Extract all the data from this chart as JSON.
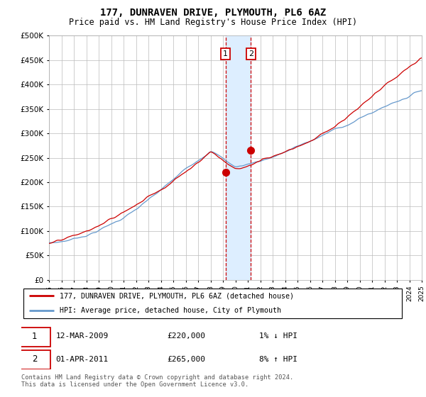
{
  "title": "177, DUNRAVEN DRIVE, PLYMOUTH, PL6 6AZ",
  "subtitle": "Price paid vs. HM Land Registry's House Price Index (HPI)",
  "legend_red": "177, DUNRAVEN DRIVE, PLYMOUTH, PL6 6AZ (detached house)",
  "legend_blue": "HPI: Average price, detached house, City of Plymouth",
  "annotation1_label": "1",
  "annotation1_date": "12-MAR-2009",
  "annotation1_price": "£220,000",
  "annotation1_hpi": "1% ↓ HPI",
  "annotation2_label": "2",
  "annotation2_date": "01-APR-2011",
  "annotation2_price": "£265,000",
  "annotation2_hpi": "8% ↑ HPI",
  "footnote": "Contains HM Land Registry data © Crown copyright and database right 2024.\nThis data is licensed under the Open Government Licence v3.0.",
  "red_color": "#cc0000",
  "blue_color": "#6699cc",
  "shade_color": "#ddeeff",
  "dashed_color": "#cc0000",
  "grid_color": "#bbbbbb",
  "ylim": [
    0,
    500000
  ],
  "yticks": [
    0,
    50000,
    100000,
    150000,
    200000,
    250000,
    300000,
    350000,
    400000,
    450000,
    500000
  ],
  "year_start": 1995,
  "year_end": 2025,
  "sale1_year": 2009.2,
  "sale1_price": 220000,
  "sale2_year": 2011.25,
  "sale2_price": 265000
}
